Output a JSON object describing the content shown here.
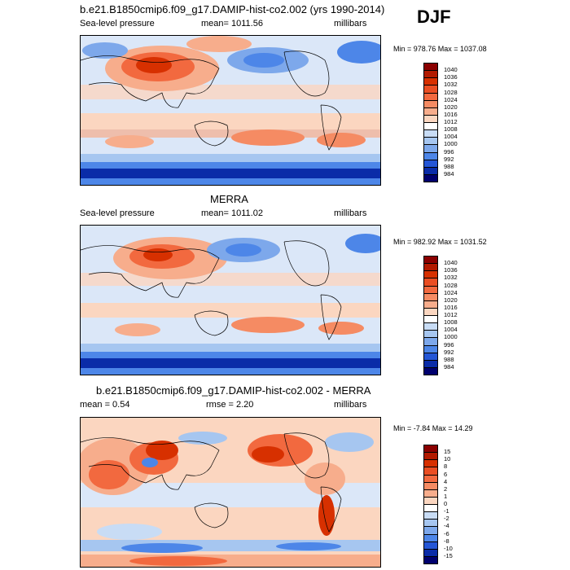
{
  "season": "DJF",
  "panels": [
    {
      "title": "b.e21.B1850cmip6.f09_g17.DAMIP-hist-co2.002 (yrs 1990-2014)",
      "left_label": "Sea-level pressure",
      "center_label": "mean= 1011.56",
      "right_label": "millibars",
      "minmax": "Min = 978.76 Max = 1037.08",
      "colorbar": {
        "labels": [
          "1040",
          "1036",
          "1032",
          "1028",
          "1024",
          "1020",
          "1016",
          "1012",
          "1008",
          "1004",
          "1000",
          "996",
          "992",
          "988",
          "984"
        ],
        "colors": [
          "#8b0000",
          "#b21a00",
          "#d73000",
          "#ea4e23",
          "#f2693f",
          "#f58b63",
          "#f7ad8c",
          "#fbd6c0",
          "#ffffff",
          "#c8dcf5",
          "#a6c6f0",
          "#7da8eb",
          "#4d86e8",
          "#2456d6",
          "#0a2ca8",
          "#00006e"
        ]
      }
    },
    {
      "title": "MERRA",
      "left_label": "Sea-level pressure",
      "center_label": "mean= 1011.02",
      "right_label": "millibars",
      "minmax": "Min = 982.92 Max = 1031.52",
      "colorbar": {
        "labels": [
          "1040",
          "1036",
          "1032",
          "1028",
          "1024",
          "1020",
          "1016",
          "1012",
          "1008",
          "1004",
          "1000",
          "996",
          "992",
          "988",
          "984"
        ],
        "colors": [
          "#8b0000",
          "#b21a00",
          "#d73000",
          "#ea4e23",
          "#f2693f",
          "#f58b63",
          "#f7ad8c",
          "#fbd6c0",
          "#ffffff",
          "#c8dcf5",
          "#a6c6f0",
          "#7da8eb",
          "#4d86e8",
          "#2456d6",
          "#0a2ca8",
          "#00006e"
        ]
      }
    },
    {
      "title": "b.e21.B1850cmip6.f09_g17.DAMIP-hist-co2.002 - MERRA",
      "left_label": "mean =   0.54",
      "center_label": "rmse =   2.20",
      "right_label": "millibars",
      "minmax": "Min =  -7.84 Max =  14.29",
      "colorbar": {
        "labels": [
          "15",
          "10",
          "8",
          "6",
          "4",
          "2",
          "1",
          "0",
          "-1",
          "-2",
          "-4",
          "-6",
          "-8",
          "-10",
          "-15"
        ],
        "colors": [
          "#8b0000",
          "#b21a00",
          "#d73000",
          "#ea4e23",
          "#f2693f",
          "#f58b63",
          "#f7ad8c",
          "#fbd6c0",
          "#ffffff",
          "#c8dcf5",
          "#a6c6f0",
          "#7da8eb",
          "#4d86e8",
          "#2456d6",
          "#0a2ca8",
          "#00006e"
        ]
      }
    }
  ]
}
